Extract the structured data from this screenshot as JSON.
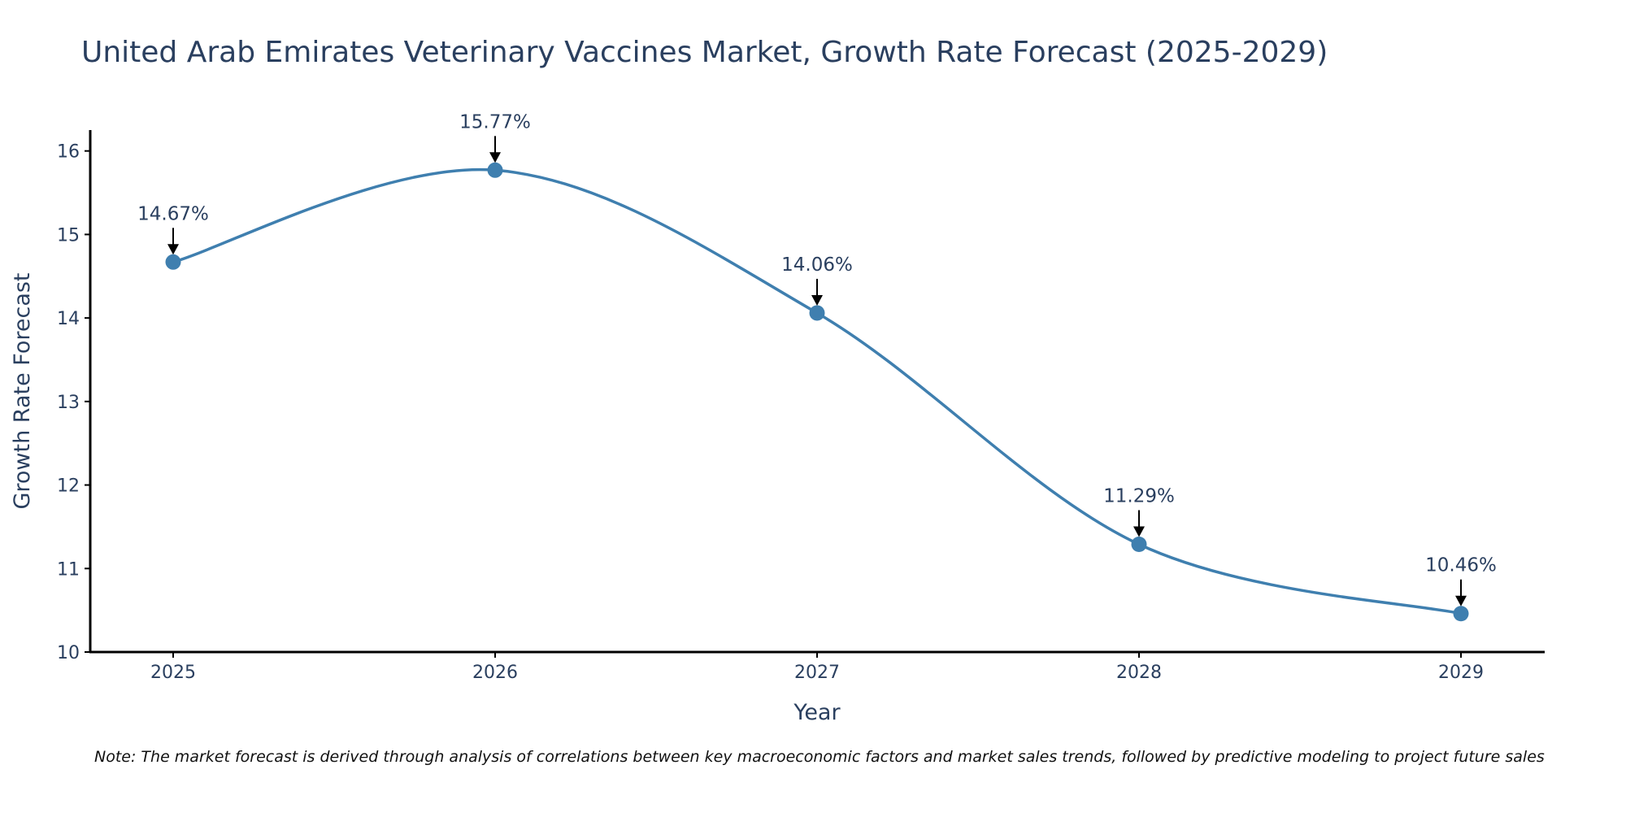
{
  "chart_data": {
    "type": "line",
    "title": "United Arab Emirates Veterinary Vaccines Market, Growth Rate Forecast (2025-2029)",
    "xlabel": "Year",
    "ylabel": "Growth Rate Forecast",
    "categories": [
      "2025",
      "2026",
      "2027",
      "2028",
      "2029"
    ],
    "values": [
      14.67,
      15.77,
      14.06,
      11.29,
      10.46
    ],
    "data_labels": [
      "14.67%",
      "15.77%",
      "14.06%",
      "11.29%",
      "10.46%"
    ],
    "y_ticks": [
      10,
      11,
      12,
      13,
      14,
      15,
      16
    ],
    "ylim": [
      10,
      16.25
    ],
    "line_color": "#3f7faf",
    "smoothing": "spline",
    "grid": false,
    "note": "Note: The market forecast is derived through analysis of correlations between key macroeconomic factors and market sales trends, followed by predictive modeling to project future sales"
  }
}
